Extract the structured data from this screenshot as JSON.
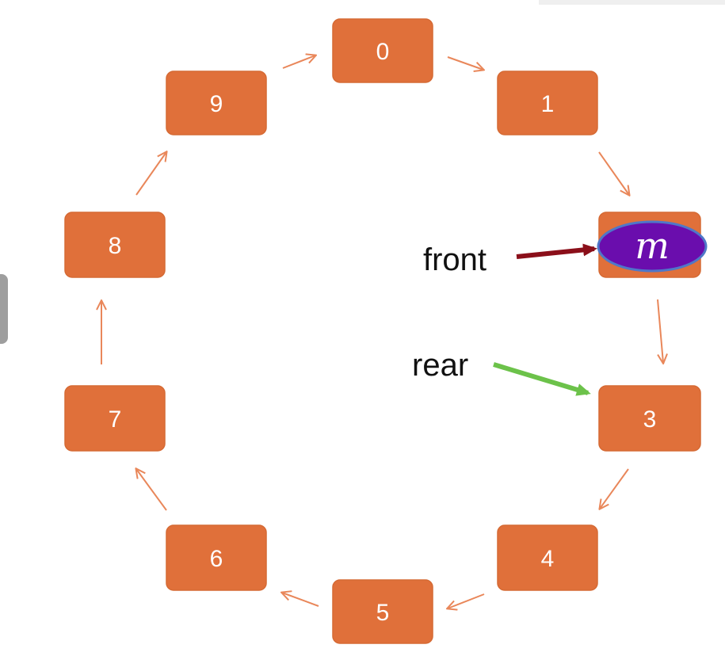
{
  "colors": {
    "slot_fill": "#E0703A",
    "slot_stroke": "#D56A34",
    "ring_arrow": "#E9875A",
    "front_arrow": "#8B0F1A",
    "rear_arrow": "#6CC24A",
    "value_fill": "#6A0DAD",
    "value_stroke": "#4F77C8"
  },
  "queue": {
    "slots": [
      "0",
      "1",
      "m",
      "3",
      "4",
      "5",
      "6",
      "7",
      "8",
      "9"
    ],
    "value_slot": 2
  },
  "pointers": {
    "front": {
      "label": "front",
      "slot": 2
    },
    "rear": {
      "label": "rear",
      "slot": 3
    }
  }
}
